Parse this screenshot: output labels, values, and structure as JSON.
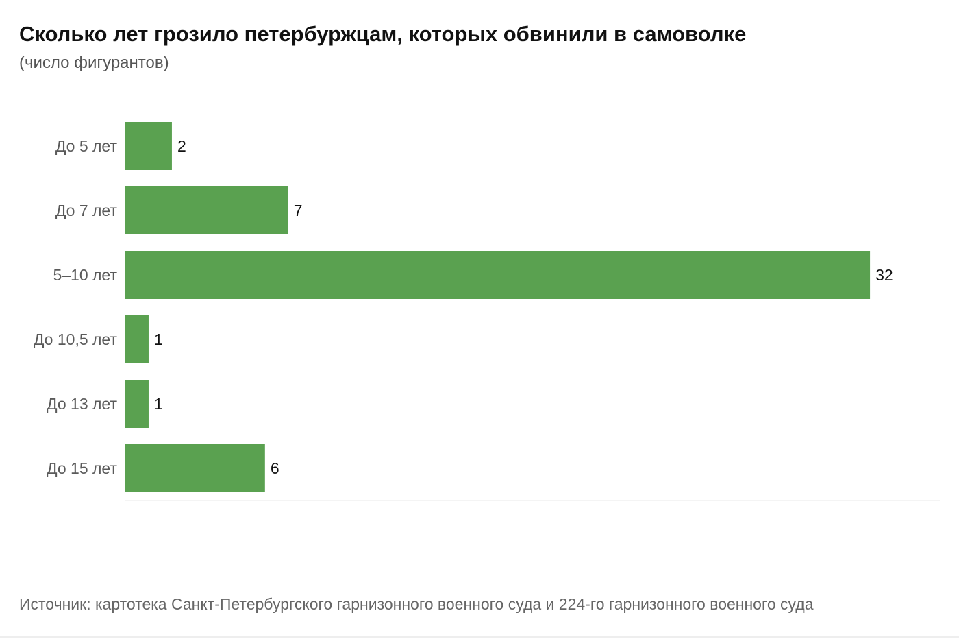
{
  "chart_data": {
    "type": "bar",
    "orientation": "horizontal",
    "title": "Сколько лет грозило петербуржцам, которых обвинили в самоволке",
    "subtitle": "(число фигурантов)",
    "categories": [
      "До 5 лет",
      "До 7 лет",
      "5–10 лет",
      "До 10,5 лет",
      "До 13 лет",
      "До 15 лет"
    ],
    "values": [
      2,
      7,
      32,
      1,
      1,
      6
    ],
    "value_labels": [
      "2",
      "7",
      "32",
      "1",
      "1",
      "6"
    ],
    "xlim": [
      0,
      35
    ],
    "grid": false,
    "legend": "none",
    "bar_color": "#5aa150",
    "source": "Источник: картотека Санкт-Петербургского гарнизонного военного суда и 224-го гарнизонного военного суда"
  }
}
